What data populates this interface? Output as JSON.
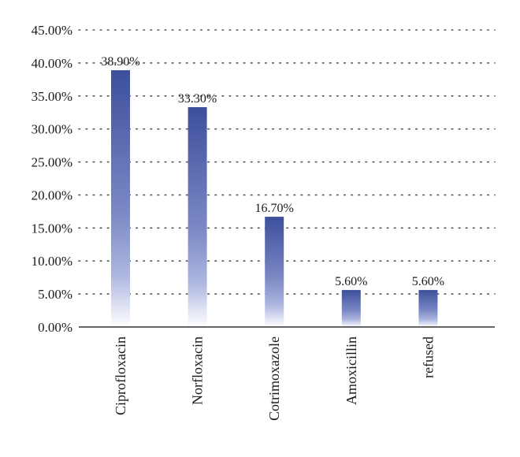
{
  "chart_data": {
    "type": "bar",
    "categories": [
      "Ciprofloxacin",
      "Norfloxacin",
      "Cotrimoxazole",
      "Amoxicillin",
      "refused"
    ],
    "values": [
      38.9,
      33.3,
      16.7,
      5.6,
      5.6
    ],
    "data_labels": [
      "38.90%",
      "33.30%",
      "16.70%",
      "5.60%",
      "5.60%"
    ],
    "y_ticks": [
      0,
      5,
      10,
      15,
      20,
      25,
      30,
      35,
      40,
      45
    ],
    "y_tick_labels": [
      "0.00%",
      "5.00%",
      "10.00%",
      "15.00%",
      "20.00%",
      "25.00%",
      "30.00%",
      "35.00%",
      "40.00%",
      "45.00%"
    ],
    "ylim": [
      0,
      45
    ],
    "grid": "horizontal dotted",
    "category_label_rotation": "vertical",
    "bar_color_top": "#3d4f9c",
    "bar_color_bottom": "#ffffff"
  }
}
